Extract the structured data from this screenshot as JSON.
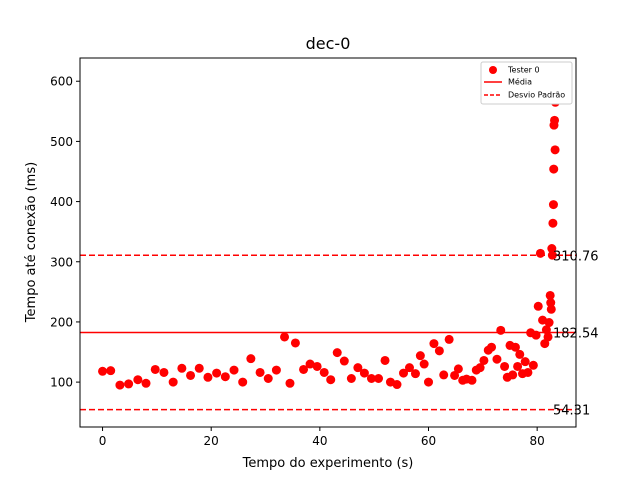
{
  "chart_data": {
    "type": "scatter",
    "title": "dec-0",
    "xlabel": "Tempo do experimento (s)",
    "ylabel": "Tempo até conexão (ms)",
    "xlim": [
      -4.15,
      87.15
    ],
    "ylim": [
      25.4,
      638.6
    ],
    "x_ticks": [
      0,
      20,
      40,
      60,
      80
    ],
    "y_ticks": [
      100,
      200,
      300,
      400,
      500,
      600
    ],
    "grid": false,
    "legend_position": "top-right",
    "legend": [
      "Tester 0",
      "Média",
      "Desvio Padrão"
    ],
    "colors": {
      "points": "#ff0000",
      "mean": "#ff0000",
      "std": "#ff0000"
    },
    "series": [
      {
        "name": "Tester 0",
        "points": [
          [
            0.0,
            118
          ],
          [
            1.5,
            119
          ],
          [
            3.2,
            95
          ],
          [
            4.8,
            97
          ],
          [
            6.5,
            104
          ],
          [
            8.0,
            98
          ],
          [
            9.7,
            121
          ],
          [
            11.3,
            116
          ],
          [
            13.0,
            100
          ],
          [
            14.6,
            123
          ],
          [
            16.2,
            111
          ],
          [
            17.8,
            123
          ],
          [
            19.4,
            108
          ],
          [
            21.0,
            115
          ],
          [
            22.6,
            109
          ],
          [
            24.2,
            120
          ],
          [
            25.8,
            100
          ],
          [
            27.3,
            139
          ],
          [
            29.0,
            116
          ],
          [
            30.5,
            106
          ],
          [
            32.0,
            120
          ],
          [
            33.5,
            175
          ],
          [
            34.5,
            98
          ],
          [
            35.5,
            165
          ],
          [
            37.0,
            121
          ],
          [
            38.2,
            130
          ],
          [
            39.5,
            126
          ],
          [
            40.8,
            116
          ],
          [
            42.0,
            104
          ],
          [
            43.2,
            149
          ],
          [
            44.5,
            135
          ],
          [
            45.8,
            106
          ],
          [
            47.0,
            124
          ],
          [
            48.2,
            115
          ],
          [
            49.5,
            106
          ],
          [
            50.8,
            106
          ],
          [
            52.0,
            136
          ],
          [
            53.0,
            100
          ],
          [
            54.2,
            96
          ],
          [
            55.4,
            115
          ],
          [
            56.5,
            124
          ],
          [
            57.6,
            114
          ],
          [
            58.5,
            144
          ],
          [
            59.2,
            130
          ],
          [
            60.0,
            100
          ],
          [
            61.0,
            164
          ],
          [
            62.0,
            152
          ],
          [
            62.8,
            112
          ],
          [
            63.8,
            171
          ],
          [
            64.8,
            111
          ],
          [
            65.5,
            122
          ],
          [
            66.3,
            103
          ],
          [
            67.0,
            105
          ],
          [
            68.0,
            103
          ],
          [
            68.8,
            120
          ],
          [
            69.5,
            124
          ],
          [
            70.2,
            136
          ],
          [
            71.0,
            153
          ],
          [
            71.6,
            158
          ],
          [
            72.6,
            138
          ],
          [
            73.3,
            186
          ],
          [
            74.0,
            126
          ],
          [
            74.5,
            108
          ],
          [
            75.0,
            161
          ],
          [
            75.5,
            112
          ],
          [
            76.0,
            158
          ],
          [
            76.4,
            126
          ],
          [
            76.8,
            146
          ],
          [
            77.3,
            114
          ],
          [
            77.8,
            134
          ],
          [
            78.3,
            116
          ],
          [
            78.8,
            182
          ],
          [
            79.3,
            128
          ],
          [
            79.8,
            178
          ],
          [
            80.2,
            226
          ],
          [
            80.6,
            314
          ],
          [
            81.0,
            203
          ],
          [
            81.4,
            164
          ],
          [
            81.7,
            187
          ],
          [
            82.0,
            175
          ],
          [
            82.2,
            199
          ],
          [
            82.4,
            244
          ],
          [
            82.5,
            232
          ],
          [
            82.6,
            221
          ],
          [
            82.7,
            322
          ],
          [
            82.8,
            311
          ],
          [
            82.9,
            364
          ],
          [
            83.0,
            395
          ],
          [
            83.05,
            454
          ],
          [
            83.1,
            527
          ],
          [
            83.2,
            535
          ],
          [
            83.3,
            486
          ],
          [
            83.35,
            565
          ],
          [
            83.4,
            572
          ],
          [
            83.45,
            607
          ],
          [
            83.5,
            610
          ],
          [
            83.55,
            603
          ]
        ]
      }
    ],
    "mean": 182.54,
    "std_upper": 310.76,
    "std_lower": 54.31,
    "mean_label": "182.54",
    "std_upper_label": "310.76",
    "std_lower_label": "54.31"
  }
}
